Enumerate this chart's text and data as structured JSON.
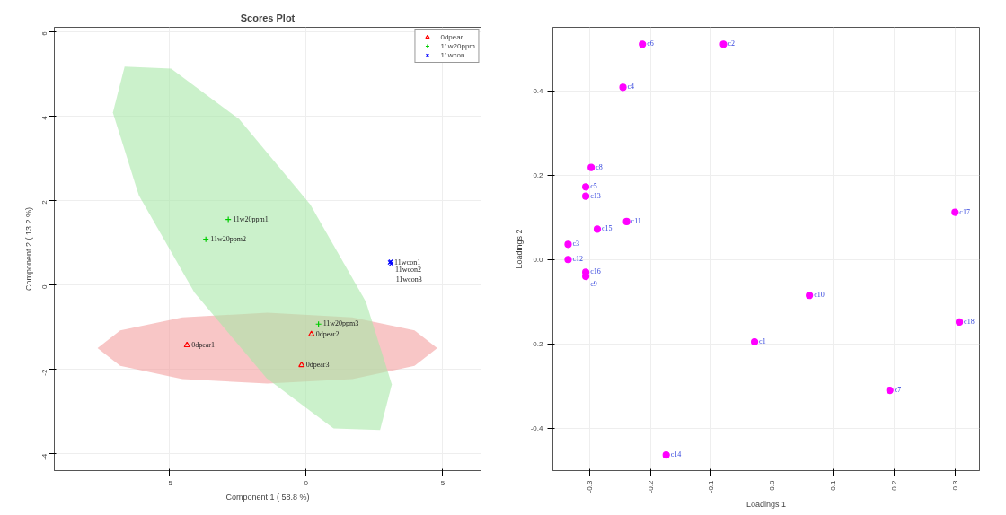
{
  "chart_data": [
    {
      "type": "scatter",
      "title": "Scores Plot",
      "xlabel": "Component 1 ( 58.8 %)",
      "ylabel": "Component 2 ( 13.2 %)",
      "xlim": [
        -9.2,
        6.4
      ],
      "ylim": [
        -4.4,
        6.1
      ],
      "xticks": [
        -5,
        0,
        5
      ],
      "yticks": [
        -4,
        -2,
        0,
        2,
        4,
        6
      ],
      "grid": true,
      "legend": "top right",
      "series": [
        {
          "type": "area",
          "color": "#f4a0a0",
          "x": [
            4.8,
            3.97,
            1.7,
            -1.41,
            -4.52,
            -6.79,
            -7.62,
            -6.79,
            -4.52,
            -1.41,
            1.7,
            3.97
          ],
          "values": [
            -1.5,
            -1.08,
            -0.77,
            -0.66,
            -0.77,
            -1.08,
            -1.5,
            -1.92,
            -2.23,
            -2.34,
            -2.23,
            -1.92
          ]
        },
        {
          "type": "area",
          "color": "#a8e8a8",
          "x": [
            2.71,
            3.14,
            2.19,
            0.16,
            -2.45,
            -4.93,
            -6.63,
            -7.06,
            -6.11,
            -4.08,
            -1.44,
            1.01
          ],
          "values": [
            -3.44,
            -2.36,
            -0.4,
            1.9,
            3.93,
            5.12,
            5.17,
            4.08,
            2.12,
            -0.18,
            -2.21,
            -3.4
          ]
        },
        {
          "name": "0dpear",
          "color": "#ff0000",
          "marker": "triangle",
          "x": [
            -4.35,
            0.2,
            -0.16
          ],
          "values": [
            -1.43,
            -1.17,
            -1.9
          ]
        },
        {
          "name": "11w20ppm",
          "color": "#00cc00",
          "marker": "cross",
          "x": [
            -2.84,
            -3.66,
            0.46
          ],
          "values": [
            1.55,
            1.08,
            -0.93
          ]
        },
        {
          "name": "11wcon",
          "color": "#0000ff",
          "marker": "x",
          "x": [
            3.07,
            3.1,
            3.12
          ],
          "values": [
            0.53,
            0.55,
            0.5
          ]
        }
      ],
      "annotations": [
        {
          "text": "0dpear1",
          "x": -4.35,
          "y": -1.43
        },
        {
          "text": "0dpear2",
          "x": 0.2,
          "y": -1.17
        },
        {
          "text": "0dpear3",
          "x": -0.16,
          "y": -1.9
        },
        {
          "text": "11w20ppm1",
          "x": -2.84,
          "y": 1.55
        },
        {
          "text": "11w20ppm2",
          "x": -3.66,
          "y": 1.08
        },
        {
          "text": "11w20ppm3",
          "x": 0.46,
          "y": -0.93
        },
        {
          "text": "11wcon1",
          "x": 3.07,
          "y": 0.53
        },
        {
          "text": "11wcon2",
          "x": 3.1,
          "y": 0.55
        },
        {
          "text": "11wcon3",
          "x": 3.12,
          "y": 0.5
        }
      ]
    },
    {
      "type": "scatter",
      "xlabel": "Loadings 1",
      "ylabel": "Loadings 2",
      "xlim": [
        -0.36,
        0.34
      ],
      "ylim": [
        -0.5,
        0.55
      ],
      "xticks": [
        -0.3,
        -0.2,
        -0.1,
        {
          "value": 0,
          "label": "0.0"
        },
        0.1,
        0.2,
        0.3
      ],
      "yticks": [
        -0.4,
        -0.2,
        {
          "value": 0,
          "label": "0.0"
        },
        0.2,
        0.4
      ],
      "grid": true,
      "marker": "circle",
      "series": [
        {
          "color": "#ff00ff",
          "x": [
            -0.213,
            -0.08,
            -0.245,
            -0.297,
            -0.306,
            -0.306,
            -0.239,
            -0.287,
            -0.335,
            -0.335,
            -0.306,
            -0.306,
            0.061,
            -0.029,
            0.193,
            -0.174,
            0.3,
            0.307
          ],
          "values": [
            0.51,
            0.51,
            0.408,
            0.218,
            0.172,
            0.15,
            0.09,
            0.072,
            0.036,
            0.0,
            -0.03,
            -0.04,
            -0.085,
            -0.195,
            -0.31,
            -0.463,
            0.112,
            -0.148
          ]
        }
      ],
      "annotations": [
        {
          "text": "c6",
          "x": -0.213,
          "y": 0.51
        },
        {
          "text": "c2",
          "x": -0.08,
          "y": 0.51
        },
        {
          "text": "c4",
          "x": -0.245,
          "y": 0.408
        },
        {
          "text": "c8",
          "x": -0.297,
          "y": 0.218
        },
        {
          "text": "c5",
          "x": -0.306,
          "y": 0.172
        },
        {
          "text": "c13",
          "x": -0.306,
          "y": 0.15
        },
        {
          "text": "c11",
          "x": -0.239,
          "y": 0.09
        },
        {
          "text": "c15",
          "x": -0.287,
          "y": 0.072
        },
        {
          "text": "c3",
          "x": -0.335,
          "y": 0.036
        },
        {
          "text": "c12",
          "x": -0.335,
          "y": 0.0
        },
        {
          "text": "c16",
          "x": -0.306,
          "y": -0.03
        },
        {
          "text": "c9",
          "x": -0.306,
          "y": -0.04
        },
        {
          "text": "c10",
          "x": 0.061,
          "y": -0.085
        },
        {
          "text": "c1",
          "x": -0.029,
          "y": -0.195
        },
        {
          "text": "c7",
          "x": 0.193,
          "y": -0.31
        },
        {
          "text": "c14",
          "x": -0.174,
          "y": -0.463
        },
        {
          "text": "c17",
          "x": 0.3,
          "y": 0.112
        },
        {
          "text": "c18",
          "x": 0.307,
          "y": -0.148
        }
      ]
    }
  ]
}
